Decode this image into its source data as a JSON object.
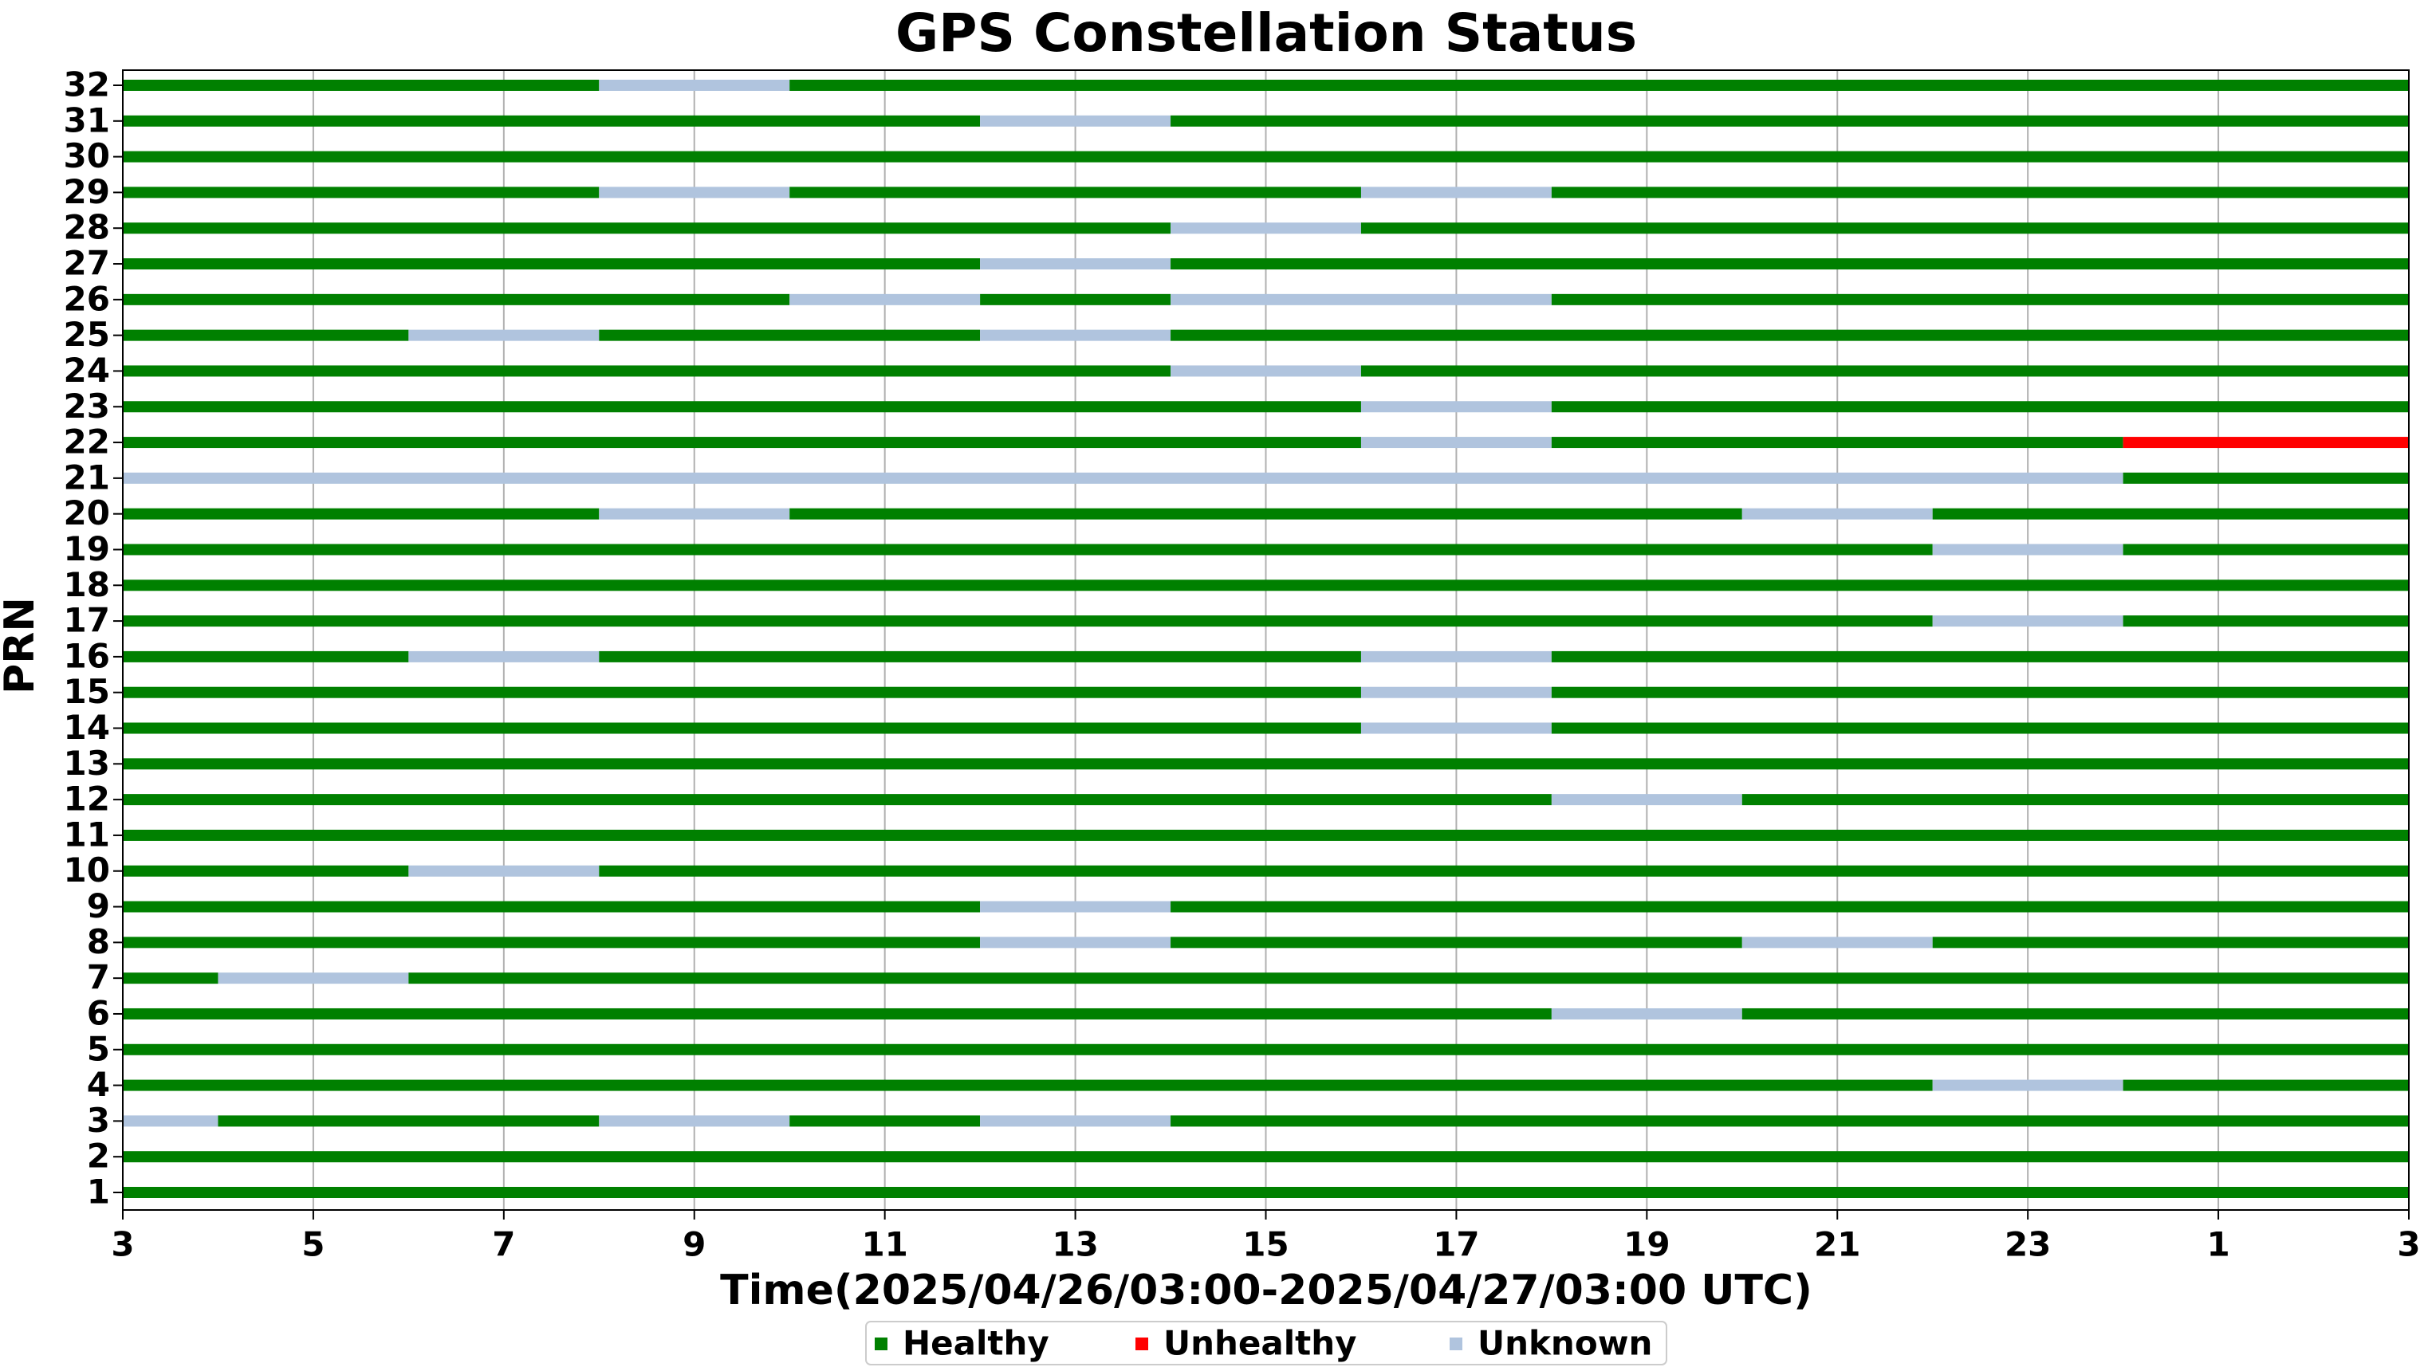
{
  "chart_data": {
    "type": "timeline",
    "title": "GPS Constellation Status",
    "xlabel": "Time(2025/04/26/03:00-2025/04/27/03:00 UTC)",
    "ylabel": "PRN",
    "xlim": [
      3,
      27
    ],
    "xticks": [
      3,
      5,
      7,
      9,
      11,
      13,
      15,
      17,
      19,
      21,
      23,
      {
        "value": 25,
        "label": "1"
      },
      {
        "value": 27,
        "label": "3"
      }
    ],
    "grid": true,
    "series": [
      {
        "name": "Healthy",
        "color": "#008000"
      },
      {
        "name": "Unhealthy",
        "color": "#ff0000"
      },
      {
        "name": "Unknown",
        "color": "#b0c4de"
      }
    ],
    "categories": [
      "1",
      "2",
      "3",
      "4",
      "5",
      "6",
      "7",
      "8",
      "9",
      "10",
      "11",
      "12",
      "13",
      "14",
      "15",
      "16",
      "17",
      "18",
      "19",
      "20",
      "21",
      "22",
      "23",
      "24",
      "25",
      "26",
      "27",
      "28",
      "29",
      "30",
      "31",
      "32"
    ],
    "rows": [
      [
        [
          3,
          27,
          "Healthy"
        ]
      ],
      [
        [
          3,
          27,
          "Healthy"
        ]
      ],
      [
        [
          3,
          4,
          "Unknown"
        ],
        [
          4,
          8,
          "Healthy"
        ],
        [
          8,
          10,
          "Unknown"
        ],
        [
          10,
          12,
          "Healthy"
        ],
        [
          12,
          14,
          "Unknown"
        ],
        [
          14,
          27,
          "Healthy"
        ]
      ],
      [
        [
          3,
          22,
          "Healthy"
        ],
        [
          22,
          24,
          "Unknown"
        ],
        [
          24,
          27,
          "Healthy"
        ]
      ],
      [
        [
          3,
          27,
          "Healthy"
        ]
      ],
      [
        [
          3,
          18,
          "Healthy"
        ],
        [
          18,
          20,
          "Unknown"
        ],
        [
          20,
          27,
          "Healthy"
        ]
      ],
      [
        [
          3,
          4,
          "Healthy"
        ],
        [
          4,
          6,
          "Unknown"
        ],
        [
          6,
          27,
          "Healthy"
        ]
      ],
      [
        [
          3,
          12,
          "Healthy"
        ],
        [
          12,
          14,
          "Unknown"
        ],
        [
          14,
          20,
          "Healthy"
        ],
        [
          20,
          22,
          "Unknown"
        ],
        [
          22,
          27,
          "Healthy"
        ]
      ],
      [
        [
          3,
          12,
          "Healthy"
        ],
        [
          12,
          14,
          "Unknown"
        ],
        [
          14,
          27,
          "Healthy"
        ]
      ],
      [
        [
          3,
          6,
          "Healthy"
        ],
        [
          6,
          8,
          "Unknown"
        ],
        [
          8,
          27,
          "Healthy"
        ]
      ],
      [
        [
          3,
          27,
          "Healthy"
        ]
      ],
      [
        [
          3,
          18,
          "Healthy"
        ],
        [
          18,
          20,
          "Unknown"
        ],
        [
          20,
          27,
          "Healthy"
        ]
      ],
      [
        [
          3,
          27,
          "Healthy"
        ]
      ],
      [
        [
          3,
          16,
          "Healthy"
        ],
        [
          16,
          18,
          "Unknown"
        ],
        [
          18,
          27,
          "Healthy"
        ]
      ],
      [
        [
          3,
          16,
          "Healthy"
        ],
        [
          16,
          18,
          "Unknown"
        ],
        [
          18,
          27,
          "Healthy"
        ]
      ],
      [
        [
          3,
          6,
          "Healthy"
        ],
        [
          6,
          8,
          "Unknown"
        ],
        [
          8,
          16,
          "Healthy"
        ],
        [
          16,
          18,
          "Unknown"
        ],
        [
          18,
          27,
          "Healthy"
        ]
      ],
      [
        [
          3,
          22,
          "Healthy"
        ],
        [
          22,
          24,
          "Unknown"
        ],
        [
          24,
          27,
          "Healthy"
        ]
      ],
      [
        [
          3,
          27,
          "Healthy"
        ]
      ],
      [
        [
          3,
          22,
          "Healthy"
        ],
        [
          22,
          24,
          "Unknown"
        ],
        [
          24,
          27,
          "Healthy"
        ]
      ],
      [
        [
          3,
          8,
          "Healthy"
        ],
        [
          8,
          10,
          "Unknown"
        ],
        [
          10,
          20,
          "Healthy"
        ],
        [
          20,
          22,
          "Unknown"
        ],
        [
          22,
          27,
          "Healthy"
        ]
      ],
      [
        [
          3,
          24,
          "Unknown"
        ],
        [
          24,
          27,
          "Healthy"
        ]
      ],
      [
        [
          3,
          16,
          "Healthy"
        ],
        [
          16,
          18,
          "Unknown"
        ],
        [
          18,
          24,
          "Healthy"
        ],
        [
          24,
          27,
          "Unhealthy"
        ]
      ],
      [
        [
          3,
          16,
          "Healthy"
        ],
        [
          16,
          18,
          "Unknown"
        ],
        [
          18,
          27,
          "Healthy"
        ]
      ],
      [
        [
          3,
          14,
          "Healthy"
        ],
        [
          14,
          16,
          "Unknown"
        ],
        [
          16,
          27,
          "Healthy"
        ]
      ],
      [
        [
          3,
          6,
          "Healthy"
        ],
        [
          6,
          8,
          "Unknown"
        ],
        [
          8,
          12,
          "Healthy"
        ],
        [
          12,
          14,
          "Unknown"
        ],
        [
          14,
          27,
          "Healthy"
        ]
      ],
      [
        [
          3,
          10,
          "Healthy"
        ],
        [
          10,
          12,
          "Unknown"
        ],
        [
          12,
          14,
          "Healthy"
        ],
        [
          14,
          18,
          "Unknown"
        ],
        [
          18,
          27,
          "Healthy"
        ]
      ],
      [
        [
          3,
          12,
          "Healthy"
        ],
        [
          12,
          14,
          "Unknown"
        ],
        [
          14,
          27,
          "Healthy"
        ]
      ],
      [
        [
          3,
          14,
          "Healthy"
        ],
        [
          14,
          16,
          "Unknown"
        ],
        [
          16,
          27,
          "Healthy"
        ]
      ],
      [
        [
          3,
          8,
          "Healthy"
        ],
        [
          8,
          10,
          "Unknown"
        ],
        [
          10,
          16,
          "Healthy"
        ],
        [
          16,
          18,
          "Unknown"
        ],
        [
          18,
          27,
          "Healthy"
        ]
      ],
      [
        [
          3,
          27,
          "Healthy"
        ]
      ],
      [
        [
          3,
          12,
          "Healthy"
        ],
        [
          12,
          14,
          "Unknown"
        ],
        [
          14,
          27,
          "Healthy"
        ]
      ],
      [
        [
          3,
          8,
          "Healthy"
        ],
        [
          8,
          10,
          "Unknown"
        ],
        [
          10,
          27,
          "Healthy"
        ]
      ]
    ]
  }
}
